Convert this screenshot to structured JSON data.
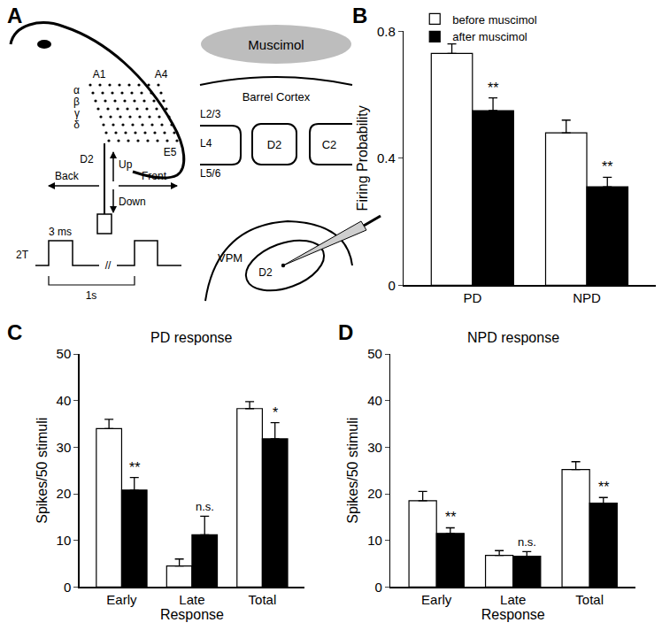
{
  "panels": [
    "A",
    "B",
    "C",
    "D"
  ],
  "diagram": {
    "whisker_rows": [
      "α",
      "β",
      "γ",
      "δ"
    ],
    "whisker_labels": [
      "A1",
      "A4",
      "E5",
      "D2"
    ],
    "directions": [
      "Up",
      "Back",
      "Front",
      "Down"
    ],
    "stimulus": {
      "amplitude": "2T",
      "duration": "3 ms",
      "break": "//",
      "interval": "1s"
    },
    "muscimol": "Muscimol",
    "cortex": "Barrel Cortex",
    "layers": [
      "L2/3",
      "L4",
      "L5/6"
    ],
    "barrels": [
      "D2",
      "C2"
    ],
    "thalamus": "VPM",
    "barreloid": "D2"
  },
  "chart_data": [
    {
      "type": "bar",
      "panel": "B",
      "categories": [
        "PD",
        "NPD"
      ],
      "series": [
        {
          "name": "before muscimol",
          "color": "#ffffff",
          "values": [
            0.73,
            0.48
          ],
          "errors": [
            0.03,
            0.04
          ]
        },
        {
          "name": "after muscimol",
          "color": "#000000",
          "values": [
            0.55,
            0.31
          ],
          "errors": [
            0.04,
            0.03
          ],
          "annotations": [
            "**",
            "**"
          ]
        }
      ],
      "y_label": "Firing Probability",
      "ylim": [
        0,
        0.8
      ],
      "yticks": [
        0,
        0.4,
        0.8
      ],
      "legend": "top left",
      "grid": false
    },
    {
      "type": "bar",
      "panel": "C",
      "title": "PD response",
      "categories": [
        "Early",
        "Late",
        "Total"
      ],
      "series": [
        {
          "name": "before muscimol",
          "color": "#ffffff",
          "values": [
            34,
            4.5,
            38.3
          ],
          "errors": [
            2,
            1.5,
            1.5
          ]
        },
        {
          "name": "after muscimol",
          "color": "#000000",
          "values": [
            20.8,
            11.2,
            31.8
          ],
          "errors": [
            2.7,
            4,
            3.5
          ],
          "annotations": [
            "**",
            "n.s.",
            "*"
          ]
        }
      ],
      "x_label": "Response",
      "y_label": "Spikes/50 stimuli",
      "ylim": [
        0,
        50
      ],
      "yticks": [
        0,
        10,
        20,
        30,
        40,
        50
      ],
      "grid": false
    },
    {
      "type": "bar",
      "panel": "D",
      "title": "NPD response",
      "categories": [
        "Early",
        "Late",
        "Total"
      ],
      "series": [
        {
          "name": "before muscimol",
          "color": "#ffffff",
          "values": [
            18.5,
            6.8,
            25.2
          ],
          "errors": [
            2,
            1,
            1.7
          ]
        },
        {
          "name": "after muscimol",
          "color": "#000000",
          "values": [
            11.5,
            6.6,
            18
          ],
          "errors": [
            1.2,
            1,
            1.2
          ],
          "annotations": [
            "**",
            "n.s.",
            "**"
          ]
        }
      ],
      "x_label": "Response",
      "y_label": "Spikes/50 stimuli",
      "ylim": [
        0,
        50
      ],
      "yticks": [
        0,
        10,
        20,
        30,
        40,
        50
      ],
      "grid": false
    }
  ]
}
